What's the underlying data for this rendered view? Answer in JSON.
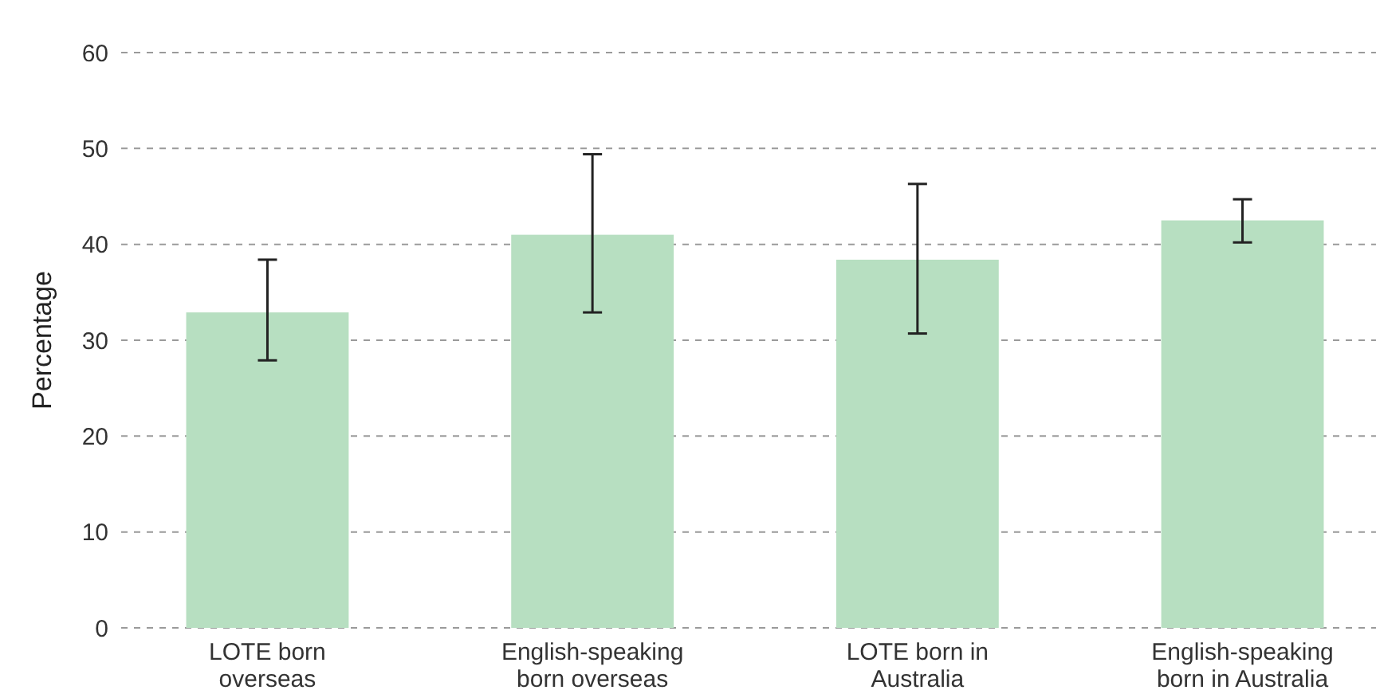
{
  "chart_data": {
    "type": "bar",
    "ylabel": "Percentage",
    "categories": [
      "LOTE born overseas",
      "English-speaking born overseas",
      "LOTE born in Australia",
      "English-speaking born in Australia"
    ],
    "values": [
      32.9,
      41.0,
      38.4,
      42.5
    ],
    "errors": [
      [
        27.9,
        38.4
      ],
      [
        32.9,
        49.4
      ],
      [
        30.7,
        46.3
      ],
      [
        40.2,
        44.7
      ]
    ],
    "color": "#b7dfc1",
    "ylim": [
      0,
      60
    ],
    "yticks": [
      0,
      10,
      20,
      30,
      40,
      50,
      60
    ],
    "grid": "y"
  }
}
